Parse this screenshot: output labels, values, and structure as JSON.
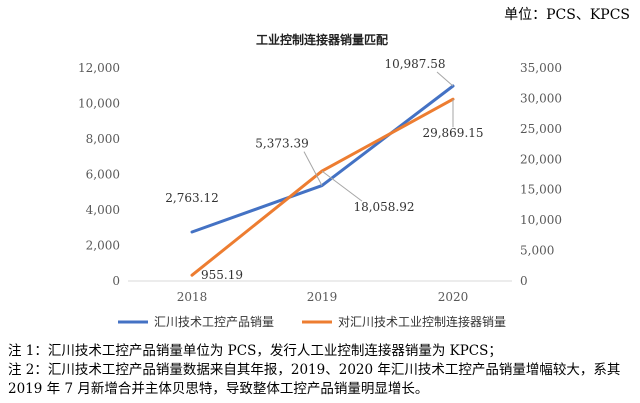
{
  "unit_text": "单位：PCS、KPCS",
  "notes": [
    "注 1：汇川技术工控产品销量单位为 PCS，发行人工业控制连接器销量为 KPCS；",
    "注 2：汇川技术工控产品销量数据来自其年报，2019、2020 年汇川技术工控产品销量增幅较大，系其 2019 年 7 月新增合并主体贝思特，导致整体工控产品销量明显增长。"
  ],
  "chart_data": {
    "type": "line",
    "title": "工业控制连接器销量匹配",
    "categories": [
      "2018",
      "2019",
      "2020"
    ],
    "y_left": {
      "ylim": [
        0,
        12000
      ],
      "ticks": [
        "0",
        "2,000",
        "4,000",
        "6,000",
        "8,000",
        "10,000",
        "12,000"
      ]
    },
    "y_right": {
      "ylim": [
        0,
        35000
      ],
      "ticks": [
        "0",
        "5,000",
        "10,000",
        "15,000",
        "20,000",
        "25,000",
        "30,000",
        "35,000"
      ]
    },
    "series": [
      {
        "name": "汇川技术工控产品销量",
        "axis": "left",
        "color": "#4472C4",
        "values": [
          2763.12,
          5373.39,
          10987.58
        ],
        "labels": [
          "2,763.12",
          "5,373.39",
          "10,987.58"
        ]
      },
      {
        "name": "对汇川技术工业控制连接器销量",
        "axis": "right",
        "color": "#ED7D31",
        "values": [
          955.19,
          18058.92,
          29869.15
        ],
        "labels": [
          "955.19",
          "18,058.92",
          "29,869.15"
        ]
      }
    ],
    "grid": false,
    "legend_position": "bottom"
  }
}
